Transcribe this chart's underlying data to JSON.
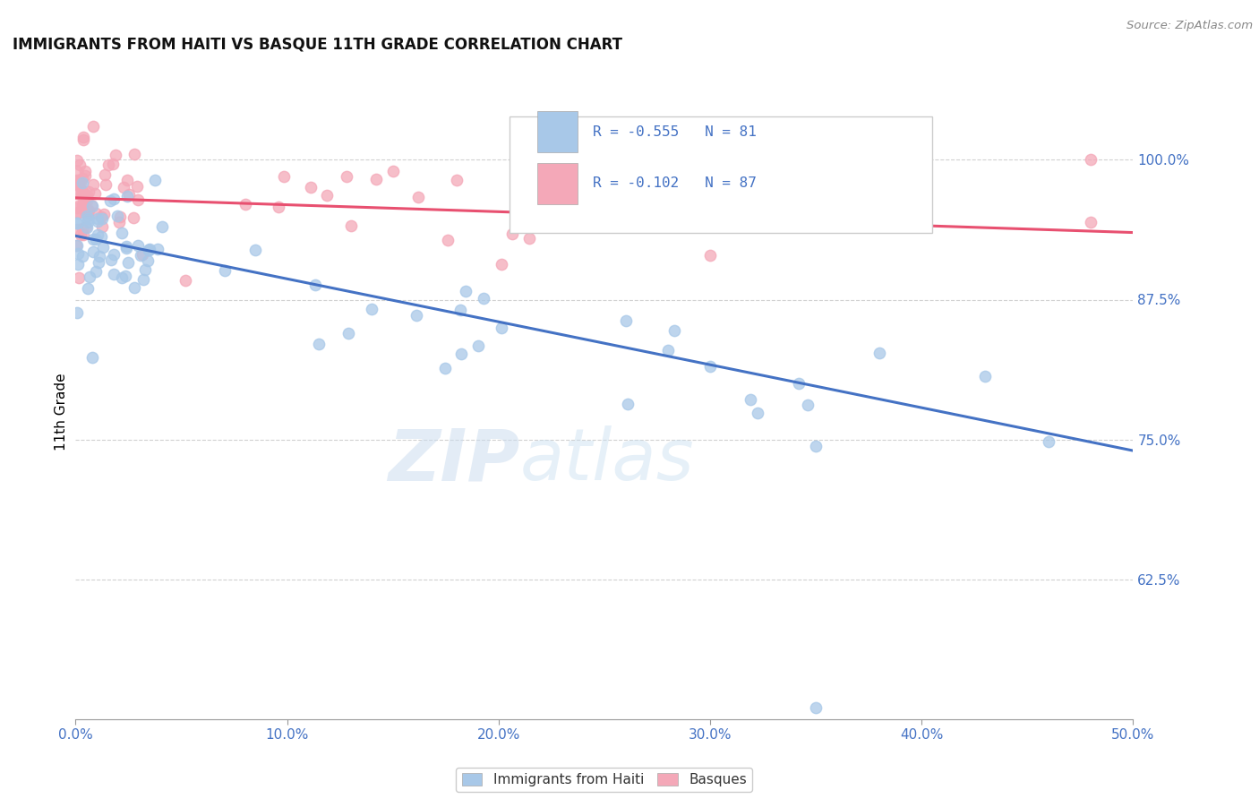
{
  "title": "IMMIGRANTS FROM HAITI VS BASQUE 11TH GRADE CORRELATION CHART",
  "source": "Source: ZipAtlas.com",
  "ylabel": "11th Grade",
  "xlim": [
    0.0,
    0.5
  ],
  "ylim": [
    0.5,
    1.05
  ],
  "haiti_R": -0.555,
  "haiti_N": 81,
  "basque_R": -0.102,
  "basque_N": 87,
  "haiti_color": "#a8c8e8",
  "basque_color": "#f4a8b8",
  "haiti_line_color": "#4472c4",
  "basque_line_color": "#e85070",
  "legend_haiti_label": "R = -0.555   N = 81",
  "legend_basque_label": "R = -0.102   N = 87",
  "scatter_legend_haiti": "Immigrants from Haiti",
  "scatter_legend_basque": "Basques",
  "haiti_trend_x0": 0.0,
  "haiti_trend_y0": 0.932,
  "haiti_trend_x1": 0.5,
  "haiti_trend_y1": 0.74,
  "basque_trend_x0": 0.0,
  "basque_trend_y0": 0.966,
  "basque_trend_x1": 0.5,
  "basque_trend_y1": 0.935
}
